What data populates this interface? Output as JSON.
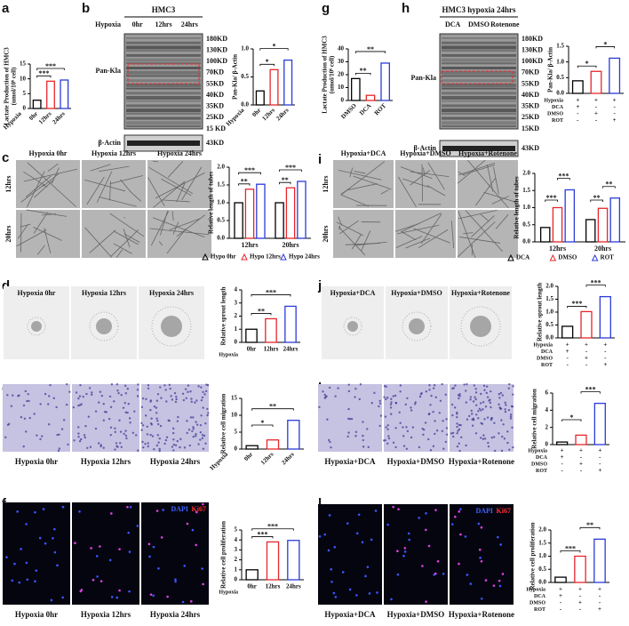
{
  "panel_labels": [
    "a",
    "b",
    "g",
    "h",
    "c",
    "i",
    "d",
    "j",
    "e",
    "k",
    "f",
    "l"
  ],
  "blots": [
    {
      "title": "HMC3",
      "condition": "Hypoxia",
      "lanes": [
        "0hr",
        "12hrs",
        "24hrs"
      ],
      "markers": [
        "180KD",
        "130KD",
        "100KD",
        "70KD",
        "55KD",
        "40KD",
        "35KD",
        "25KD",
        "15 KD"
      ],
      "band": "Pan-Kla",
      "control": "β-Actin",
      "control_marker": "43KD"
    },
    {
      "title": "HMC3 hypoxia 24hrs",
      "lanes": [
        "DCA",
        "DMSO",
        "Rotenone"
      ],
      "markers": [
        "180KD",
        "130KD",
        "100KD",
        "70KD",
        "55KD",
        "40KD",
        "35KD",
        "25KD",
        "15KD"
      ],
      "band": "Pan-Kla",
      "control": "β-Actin",
      "control_marker": "43KD"
    }
  ],
  "images": [
    {
      "titles": [
        "Hypoxia 0hr",
        "Hypoxia 12hrs",
        "Hypoxia 24hrs"
      ],
      "rows": [
        "12hrs",
        "20hrs"
      ]
    },
    {
      "titles": [
        "Hypoxia+DCA",
        "Hypoxia+DMSO",
        "Hypoxia+Rotenone"
      ],
      "rows": [
        "12hrs",
        "20hrs"
      ]
    },
    {
      "titles": [
        "Hypoxia 0hr",
        "Hypoxia 12hrs",
        "Hypoxia 24hrs"
      ]
    },
    {
      "titles": [
        "Hypoxia+DCA",
        "Hypoxia+DMSO",
        "Hypoxia+Rotenone"
      ]
    },
    {
      "titles": [
        "Hypoxia 0hr",
        "Hypoxia 12hrs",
        "Hypoxia 24hrs"
      ]
    },
    {
      "titles": [
        "Hypoxia+DCA",
        "Hypoxia+DMSO",
        "Hypoxia+Rotenone"
      ]
    },
    {
      "titles": [
        "Hypoxia 0hr",
        "Hypoxia 12hrs",
        "Hypoxia 24hrs"
      ],
      "stain": [
        "DAPI",
        "Ki67"
      ]
    },
    {
      "titles": [
        "Hypoxia+DCA",
        "Hypoxia+DMSO",
        "Hypoxia+Rotenone"
      ],
      "stain": [
        "DAPI",
        "Ki67"
      ]
    }
  ],
  "chart_data": [
    {
      "type": "bar",
      "ylabel": "Lactate Production of HMC3",
      "ylabel2": "(umol/10⁶ cell)",
      "xlabel": "Hypoxia",
      "categories": [
        "0hr",
        "12hrs",
        "24hrs"
      ],
      "values": [
        2.8,
        9.2,
        9.6
      ],
      "colors": [
        "#000000",
        "#e8262a",
        "#2b3bd8"
      ],
      "ylim": [
        0,
        15
      ],
      "yticks": [
        0,
        5,
        10,
        15
      ],
      "significance": [
        {
          "text": "***",
          "from": 0,
          "to": 1
        },
        {
          "text": "***",
          "from": 0,
          "to": 2
        }
      ]
    },
    {
      "type": "bar",
      "ylabel": "Pan-Kla/ β-Actin",
      "xlabel": "Hypoxia",
      "categories": [
        "0hr",
        "12hrs",
        "24hrs"
      ],
      "values": [
        0.25,
        0.63,
        0.8
      ],
      "colors": [
        "#000000",
        "#e8262a",
        "#2b3bd8"
      ],
      "ylim": [
        0,
        1
      ],
      "yticks": [
        {
          "value": 0,
          "label": "0.0"
        },
        0.5,
        {
          "value": 1,
          "label": "1.0"
        }
      ],
      "significance": [
        {
          "text": "*",
          "from": 0,
          "to": 1
        },
        {
          "text": "*",
          "from": 0,
          "to": 2
        }
      ]
    },
    {
      "type": "bar",
      "ylabel": "Lactate Production of HMC3",
      "ylabel2": "(umol/10⁶ cell)",
      "categories": [
        "DMSO",
        "DCA",
        "ROT"
      ],
      "values": [
        17,
        4,
        29
      ],
      "colors": [
        "#000000",
        "#e8262a",
        "#2b3bd8"
      ],
      "ylim": [
        0,
        40
      ],
      "yticks": [
        0,
        10,
        20,
        30,
        40
      ],
      "significance": [
        {
          "text": "**",
          "from": 0,
          "to": 1
        },
        {
          "text": "**",
          "from": 0,
          "to": 2
        }
      ]
    },
    {
      "type": "bar",
      "ylabel": "Pan-Kla/ β-Actin",
      "values": [
        0.4,
        0.7,
        1.12
      ],
      "colors": [
        "#000000",
        "#e8262a",
        "#2b3bd8"
      ],
      "ylim": [
        0,
        1.5
      ],
      "yticks": [
        {
          "value": 0,
          "label": "0.0"
        },
        0.5,
        {
          "value": 1,
          "label": "1.0"
        },
        1.5
      ],
      "treatments": [
        {
          "name": "Hypoxia",
          "signs": [
            "+",
            "+",
            "+"
          ]
        },
        {
          "name": "DCA",
          "signs": [
            "+",
            "-",
            "-"
          ]
        },
        {
          "name": "DMSO",
          "signs": [
            "-",
            "+",
            "-"
          ]
        },
        {
          "name": "ROT",
          "signs": [
            "-",
            "-",
            "+"
          ]
        }
      ],
      "significance": [
        {
          "text": "*",
          "from": 0,
          "to": 1
        },
        {
          "text": "*",
          "from": 1,
          "to": 2
        }
      ]
    },
    {
      "type": "grouped_bar",
      "ylabel": "Relative length of tubes",
      "categories": [
        "12hrs",
        "20hrs"
      ],
      "series": [
        {
          "name": "Hypo 0hr",
          "color": "#000000",
          "values": [
            1.0,
            1.0
          ]
        },
        {
          "name": "Hypo 12hrs",
          "color": "#e8262a",
          "values": [
            1.38,
            1.42
          ]
        },
        {
          "name": "Hypo 24hrs",
          "color": "#2b3bd8",
          "values": [
            1.52,
            1.6
          ]
        }
      ],
      "ylim": [
        0,
        2
      ],
      "yticks": [
        {
          "value": 0,
          "label": "0.0"
        },
        0.5,
        {
          "value": 1,
          "label": "1.0"
        },
        1.5,
        {
          "value": 2,
          "label": "2.0"
        }
      ],
      "significance": [
        {
          "text": "**",
          "group": 0,
          "from": 0,
          "to": 1
        },
        {
          "text": "***",
          "group": 0,
          "from": 0,
          "to": 2
        },
        {
          "text": "**",
          "group": 1,
          "from": 0,
          "to": 1
        },
        {
          "text": "***",
          "group": 1,
          "from": 0,
          "to": 2
        }
      ]
    },
    {
      "type": "grouped_bar",
      "ylabel": "Relative length of tubes",
      "categories": [
        "12hrs",
        "20hrs"
      ],
      "series": [
        {
          "name": "DCA",
          "color": "#000000",
          "values": [
            0.42,
            0.65
          ]
        },
        {
          "name": "DMSO",
          "color": "#e8262a",
          "values": [
            1.0,
            0.98
          ]
        },
        {
          "name": "ROT",
          "color": "#2b3bd8",
          "values": [
            1.52,
            1.28
          ]
        }
      ],
      "ylim": [
        0,
        2
      ],
      "yticks": [
        {
          "value": 0,
          "label": "0.0"
        },
        0.5,
        {
          "value": 1,
          "label": "1.0"
        },
        1.5,
        {
          "value": 2,
          "label": "2.0"
        }
      ],
      "significance": [
        {
          "text": "***",
          "group": 0,
          "from": 0,
          "to": 1
        },
        {
          "text": "***",
          "group": 0,
          "from": 1,
          "to": 2
        },
        {
          "text": "**",
          "group": 1,
          "from": 0,
          "to": 1
        },
        {
          "text": "**",
          "group": 1,
          "from": 1,
          "to": 2
        }
      ]
    },
    {
      "type": "bar",
      "ylabel": "Relative sprout length",
      "xlabel": "Hypoxia",
      "categories": [
        "0hr",
        "12hrs",
        "24hrs"
      ],
      "values": [
        1.0,
        1.8,
        2.75
      ],
      "colors": [
        "#000000",
        "#e8262a",
        "#2b3bd8"
      ],
      "ylim": [
        0,
        4
      ],
      "yticks": [
        0,
        1,
        2,
        3,
        4
      ],
      "significance": [
        {
          "text": "**",
          "from": 0,
          "to": 1
        },
        {
          "text": "***",
          "from": 0,
          "to": 2
        }
      ]
    },
    {
      "type": "bar",
      "ylabel": "Relative sprout length",
      "values": [
        0.45,
        1.02,
        1.6
      ],
      "colors": [
        "#000000",
        "#e8262a",
        "#2b3bd8"
      ],
      "ylim": [
        0,
        2
      ],
      "yticks": [
        {
          "value": 0,
          "label": "0.0"
        },
        0.5,
        {
          "value": 1,
          "label": "1.0"
        },
        1.5,
        {
          "value": 2,
          "label": "2.0"
        }
      ],
      "treatments": [
        {
          "name": "Hypoxia",
          "signs": [
            "+",
            "+",
            "+"
          ]
        },
        {
          "name": "DCA",
          "signs": [
            "+",
            "-",
            "-"
          ]
        },
        {
          "name": "DMSO",
          "signs": [
            "-",
            "+",
            "-"
          ]
        },
        {
          "name": "ROT",
          "signs": [
            "-",
            "-",
            "+"
          ]
        }
      ],
      "significance": [
        {
          "text": "***",
          "from": 0,
          "to": 1
        },
        {
          "text": "***",
          "from": 1,
          "to": 2
        }
      ]
    },
    {
      "type": "bar",
      "ylabel": "Relative cell migration",
      "xlabel": "Hypoxia",
      "categories": [
        "0hr",
        "12hrs",
        "24hrs"
      ],
      "values": [
        1.0,
        2.7,
        8.5
      ],
      "colors": [
        "#000000",
        "#e8262a",
        "#2b3bd8"
      ],
      "ylim": [
        0,
        15
      ],
      "yticks": [
        0,
        5,
        10,
        15
      ],
      "significance": [
        {
          "text": "*",
          "from": 0,
          "to": 1
        },
        {
          "text": "**",
          "from": 0,
          "to": 2
        }
      ]
    },
    {
      "type": "bar",
      "ylabel": "Relative cell migration",
      "values": [
        0.3,
        1.1,
        4.8
      ],
      "colors": [
        "#000000",
        "#e8262a",
        "#2b3bd8"
      ],
      "ylim": [
        0,
        6
      ],
      "yticks": [
        0,
        2,
        4,
        6
      ],
      "treatments": [
        {
          "name": "Hypoxia",
          "signs": [
            "+",
            "+",
            "+"
          ]
        },
        {
          "name": "DCA",
          "signs": [
            "+",
            "-",
            "-"
          ]
        },
        {
          "name": "DMSO",
          "signs": [
            "-",
            "+",
            "-"
          ]
        },
        {
          "name": "ROT",
          "signs": [
            "-",
            "-",
            "+"
          ]
        }
      ],
      "significance": [
        {
          "text": "*",
          "from": 0,
          "to": 1
        },
        {
          "text": "***",
          "from": 1,
          "to": 2
        }
      ]
    },
    {
      "type": "bar",
      "ylabel": "Relative cell proliferation",
      "xlabel": "Hypoxia",
      "categories": [
        "0hr",
        "12hrs",
        "24hrs"
      ],
      "values": [
        1.0,
        3.8,
        3.95
      ],
      "colors": [
        "#000000",
        "#e8262a",
        "#2b3bd8"
      ],
      "ylim": [
        0,
        5
      ],
      "yticks": [
        0,
        1,
        2,
        3,
        4,
        5
      ],
      "significance": [
        {
          "text": "***",
          "from": 0,
          "to": 1
        },
        {
          "text": "***",
          "from": 0,
          "to": 2
        }
      ]
    },
    {
      "type": "bar",
      "ylabel": "Relative cell proliferation",
      "values": [
        0.2,
        1.0,
        1.65
      ],
      "colors": [
        "#000000",
        "#e8262a",
        "#2b3bd8"
      ],
      "ylim": [
        0,
        2
      ],
      "yticks": [
        {
          "value": 0,
          "label": "0.0"
        },
        0.5,
        {
          "value": 1,
          "label": "1.0"
        },
        1.5,
        {
          "value": 2,
          "label": "2.0"
        }
      ],
      "treatments": [
        {
          "name": "Hypoxia",
          "signs": [
            "+",
            "+",
            "+"
          ]
        },
        {
          "name": "DCA",
          "signs": [
            "+",
            "-",
            "-"
          ]
        },
        {
          "name": "DMSO",
          "signs": [
            "-",
            "+",
            "-"
          ]
        },
        {
          "name": "ROT",
          "signs": [
            "-",
            "-",
            "+"
          ]
        }
      ],
      "significance": [
        {
          "text": "***",
          "from": 0,
          "to": 1
        },
        {
          "text": "**",
          "from": 1,
          "to": 2
        }
      ]
    }
  ]
}
